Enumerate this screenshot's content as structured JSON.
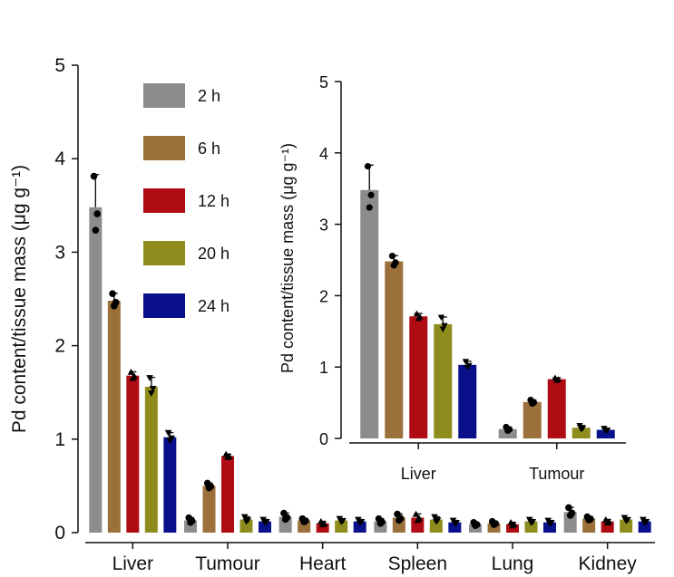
{
  "chart_data": [
    {
      "type": "bar",
      "ylabel": "Pd content/tissue mass (μg g⁻¹)",
      "ylim": [
        0,
        5
      ],
      "yticks": [
        "0",
        "1",
        "2",
        "3",
        "4",
        "5"
      ],
      "categories": [
        "Liver",
        "Tumour",
        "Heart",
        "Spleen",
        "Lung",
        "Kidney"
      ],
      "legend_position": "top-left",
      "series": [
        {
          "name": "2 h",
          "color": "#8c8c8c",
          "values": [
            3.48,
            0.13,
            0.17,
            0.12,
            0.09,
            0.22
          ],
          "error": [
            0.35,
            0.03,
            0.04,
            0.03,
            0.02,
            0.05
          ]
        },
        {
          "name": "6 h",
          "color": "#9b703a",
          "values": [
            2.48,
            0.5,
            0.13,
            0.16,
            0.1,
            0.15
          ],
          "error": [
            0.08,
            0.03,
            0.02,
            0.04,
            0.02,
            0.02
          ]
        },
        {
          "name": "12 h",
          "color": "#b00c14",
          "values": [
            1.68,
            0.82,
            0.1,
            0.16,
            0.09,
            0.12
          ],
          "error": [
            0.04,
            0.02,
            0.02,
            0.04,
            0.02,
            0.02
          ]
        },
        {
          "name": "20 h",
          "color": "#8f8c1e",
          "values": [
            1.56,
            0.14,
            0.13,
            0.14,
            0.12,
            0.14
          ],
          "error": [
            0.1,
            0.03,
            0.02,
            0.03,
            0.02,
            0.02
          ]
        },
        {
          "name": "24 h",
          "color": "#0a0f8c",
          "values": [
            1.02,
            0.12,
            0.12,
            0.11,
            0.11,
            0.12
          ],
          "error": [
            0.05,
            0.02,
            0.02,
            0.02,
            0.02,
            0.02
          ]
        }
      ]
    },
    {
      "type": "bar",
      "ylabel": "Pd content/tissue mass (μg g⁻¹)",
      "ylim": [
        0,
        5
      ],
      "yticks": [
        "0",
        "1",
        "2",
        "3",
        "4",
        "5"
      ],
      "categories": [
        "Liver",
        "Tumour"
      ],
      "series": [
        {
          "name": "2 h",
          "color": "#8c8c8c",
          "values": [
            3.48,
            0.13
          ],
          "error": [
            0.35,
            0.03
          ]
        },
        {
          "name": "6 h",
          "color": "#9b703a",
          "values": [
            2.48,
            0.51
          ],
          "error": [
            0.08,
            0.03
          ]
        },
        {
          "name": "12 h",
          "color": "#b00c14",
          "values": [
            1.71,
            0.83
          ],
          "error": [
            0.04,
            0.02
          ]
        },
        {
          "name": "20 h",
          "color": "#8f8c1e",
          "values": [
            1.6,
            0.15
          ],
          "error": [
            0.1,
            0.03
          ]
        },
        {
          "name": "24 h",
          "color": "#0a0f8c",
          "values": [
            1.03,
            0.12
          ],
          "error": [
            0.05,
            0.02
          ]
        }
      ]
    }
  ]
}
